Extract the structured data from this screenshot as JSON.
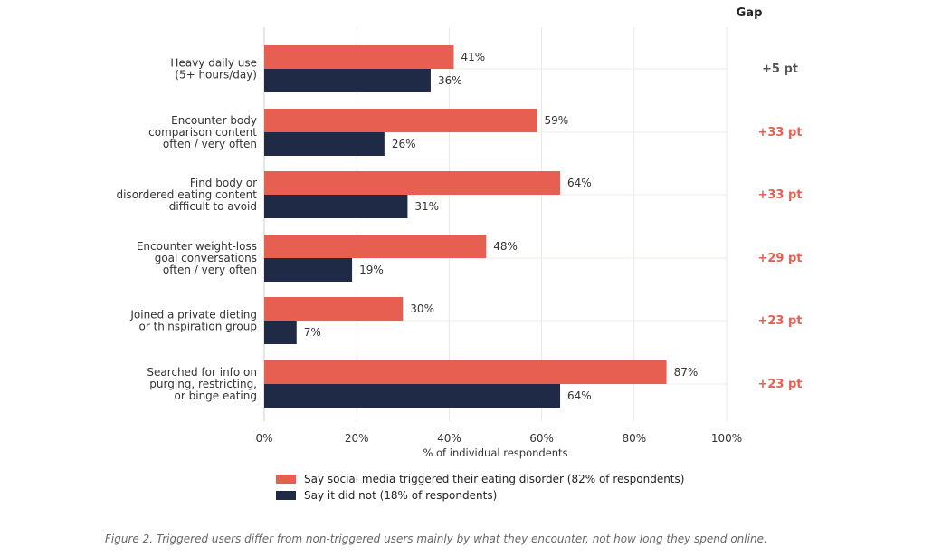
{
  "chart_data": {
    "type": "bar",
    "orientation": "horizontal",
    "categories": [
      [
        "Heavy daily use",
        "(5+ hours/day)"
      ],
      [
        "Encounter body",
        "comparison content",
        "often / very often"
      ],
      [
        "Find body or",
        "disordered eating content",
        "difficult to avoid"
      ],
      [
        "Encounter weight-loss",
        "goal conversations",
        "often / very often"
      ],
      [
        "Joined a private dieting",
        "or thinspiration group"
      ],
      [
        "Searched for info on",
        "purging, restricting,",
        "or binge eating"
      ]
    ],
    "series": [
      {
        "name": "Say social media triggered their eating disorder (82% of respondents)",
        "color": "#e65f50",
        "values": [
          41,
          59,
          64,
          48,
          30,
          87
        ],
        "labels": [
          "41%",
          "59%",
          "64%",
          "48%",
          "30%",
          "87%"
        ]
      },
      {
        "name": "Say it did not (18% of respondents)",
        "color": "#1f2a46",
        "values": [
          36,
          26,
          31,
          19,
          7,
          64
        ],
        "labels": [
          "36%",
          "26%",
          "31%",
          "19%",
          "7%",
          "64%"
        ]
      }
    ],
    "gap": {
      "header": "Gap",
      "labels": [
        "+5 pt",
        "+33 pt",
        "+33 pt",
        "+29 pt",
        "+23 pt",
        "+23 pt"
      ],
      "colors": [
        "#555555",
        "#e65f50",
        "#e65f50",
        "#e65f50",
        "#e65f50",
        "#e65f50"
      ]
    },
    "xlabel": "% of individual respondents",
    "xlim": [
      0,
      100
    ],
    "xticks": [
      0,
      20,
      40,
      60,
      80,
      100
    ],
    "xtick_labels": [
      "0%",
      "20%",
      "40%",
      "60%",
      "80%",
      "100%"
    ],
    "grid": "vertical",
    "legend_position": "bottom"
  },
  "caption": "Figure 2. Triggered users differ from non-triggered users mainly by what they encounter, not how long they spend online."
}
